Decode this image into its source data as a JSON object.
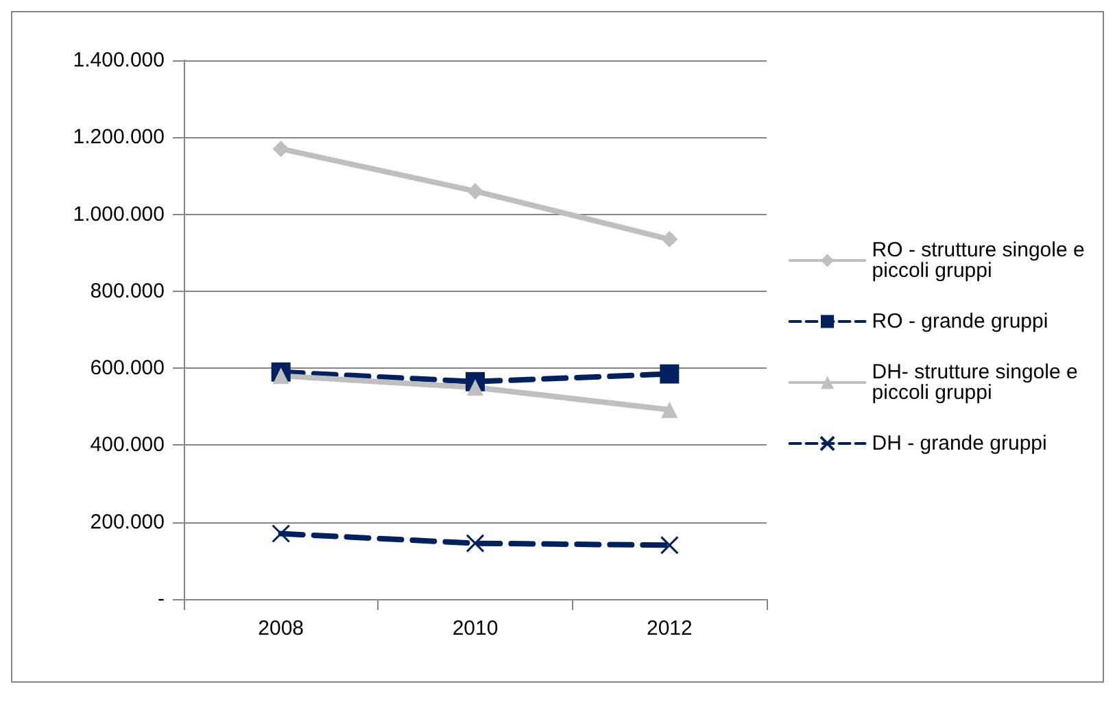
{
  "chart_data": {
    "type": "line",
    "categories": [
      "2008",
      "2010",
      "2012"
    ],
    "series": [
      {
        "name": "RO - strutture singole e piccoli gruppi",
        "color": "#bfbfbf",
        "marker": "diamond",
        "line_style": "solid",
        "values": [
          1170000,
          1060000,
          935000
        ]
      },
      {
        "name": "RO - grande gruppi",
        "color": "#002060",
        "marker": "square",
        "line_style": "dashed",
        "values": [
          590000,
          565000,
          585000
        ]
      },
      {
        "name": "DH- strutture singole e piccoli gruppi",
        "color": "#bfbfbf",
        "marker": "triangle",
        "line_style": "solid",
        "values": [
          580000,
          550000,
          492000
        ]
      },
      {
        "name": "DH - grande gruppi",
        "color": "#002060",
        "marker": "cross",
        "line_style": "dashed",
        "values": [
          170000,
          145000,
          140000
        ]
      }
    ],
    "ylim": [
      0,
      1400000
    ],
    "yticks": [
      {
        "value": 0,
        "label": "-"
      },
      {
        "value": 200000,
        "label": "200.000"
      },
      {
        "value": 400000,
        "label": "400.000"
      },
      {
        "value": 600000,
        "label": "600.000"
      },
      {
        "value": 800000,
        "label": "800.000"
      },
      {
        "value": 1000000,
        "label": "1.000.000"
      },
      {
        "value": 1200000,
        "label": "1.200.000"
      },
      {
        "value": 1400000,
        "label": "1.400.000"
      }
    ],
    "grid": "y",
    "legend": "right"
  }
}
